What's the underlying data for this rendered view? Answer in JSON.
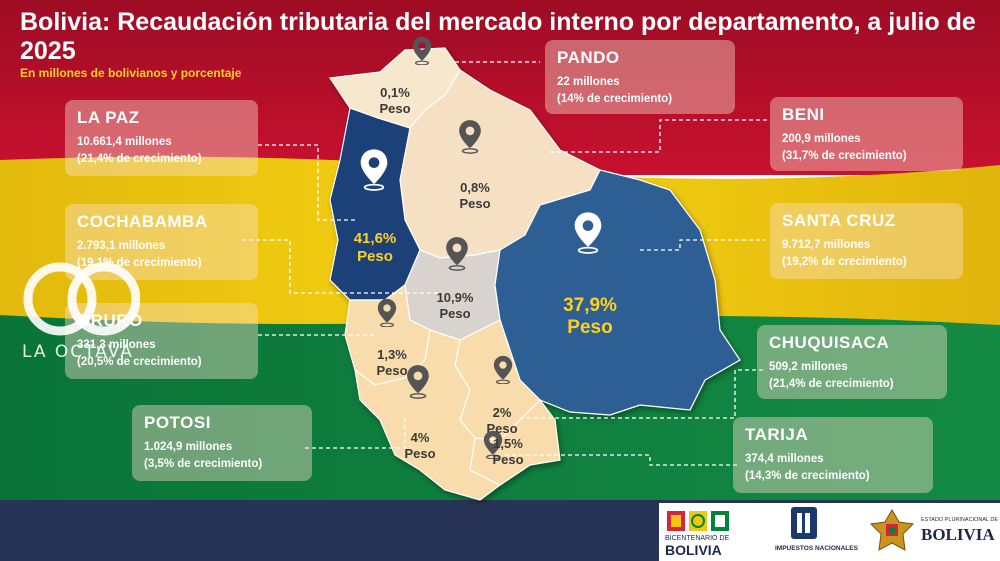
{
  "title": "Bolivia: Recaudación tributaria del mercado interno por departamento, a julio de 2025",
  "subtitle": "En millones de bolivianos y porcentaje",
  "departments": [
    {
      "name": "PANDO",
      "amount": "22 millones",
      "growth": "(14% de crecimiento)",
      "share": "0,1%",
      "share_label": "Peso"
    },
    {
      "name": "LA PAZ",
      "amount": "10.661,4 millones",
      "growth": "(21,4%  de crecimiento)",
      "share": "41,6%",
      "share_label": "Peso"
    },
    {
      "name": "BENI",
      "amount": "200,9 millones",
      "growth": "(31,7%  de crecimiento)",
      "share": "0,8%",
      "share_label": "Peso"
    },
    {
      "name": "COCHABAMBA",
      "amount": "2.793,1 millones",
      "growth": "(19,1%  de crecimiento)",
      "share": "10,9%",
      "share_label": "Peso"
    },
    {
      "name": "SANTA CRUZ",
      "amount": "9.712,7 millones",
      "growth": "(19,2%  de crecimiento)",
      "share": "37,9%",
      "share_label": "Peso"
    },
    {
      "name": "ORURO",
      "amount": "331,3 millones",
      "growth": "(20,5%  de crecimiento)",
      "share": "1,3%",
      "share_label": "Peso"
    },
    {
      "name": "CHUQUISACA",
      "amount": "509,2 millones",
      "growth": "(21,4%  de crecimiento)",
      "share": "2%",
      "share_label": "Peso"
    },
    {
      "name": "POTOSI",
      "amount": "1.024,9 millones",
      "growth": "(3,5% de crecimiento)",
      "share": "4%",
      "share_label": "Peso"
    },
    {
      "name": "TARIJA",
      "amount": "374,4 millones",
      "growth": "(14,3%  de crecimiento)",
      "share": "1,5%",
      "share_label": "Peso"
    }
  ],
  "watermark": "LA OCTAVA",
  "logos": {
    "bicentenario_top": "BICENTENARIO DE",
    "bicentenario_bottom": "BOLIVIA",
    "impuestos": "IMPUESTOS NACIONALES",
    "estado_top": "ESTADO PLURINACIONAL DE",
    "estado_bottom": "BOLIVIA"
  },
  "colors": {
    "flag_red": "#c8102e",
    "flag_yellow": "#f2c80f",
    "flag_green": "#00843d",
    "dark_blue_dept": "#1e3f78",
    "blue_dept": "#2d5f94",
    "highlight_text": "#ffd21a"
  },
  "icons": [
    "location-pin-icon"
  ]
}
